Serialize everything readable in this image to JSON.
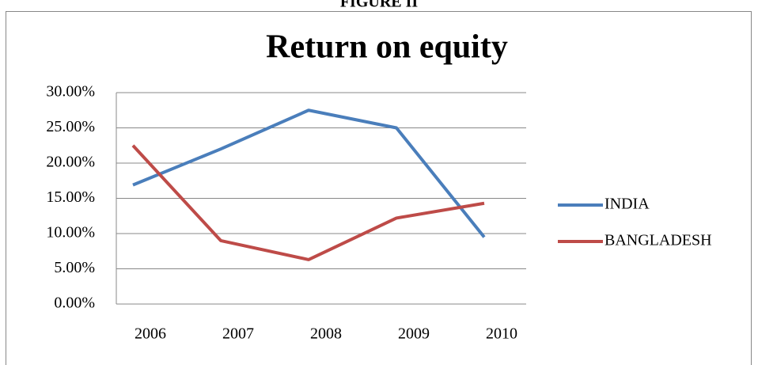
{
  "chart_data": {
    "type": "line",
    "header": "FIGURE II",
    "title": "Return on equity",
    "categories": [
      "2006",
      "2007",
      "2008",
      "2009",
      "2010"
    ],
    "series": [
      {
        "name": "INDIA",
        "color": "#4a7ebb",
        "values": [
          16.9,
          22,
          27.5,
          25,
          9.5
        ]
      },
      {
        "name": "BANGLADESH",
        "color": "#be4b48",
        "values": [
          22.5,
          9,
          6.3,
          12.2,
          14.3
        ]
      }
    ],
    "ylim": [
      0,
      30
    ],
    "yticks": [
      {
        "value": 0,
        "label": "0.00%"
      },
      {
        "value": 5,
        "label": "5.00%"
      },
      {
        "value": 10,
        "label": "10.00%"
      },
      {
        "value": 15,
        "label": "15.00%"
      },
      {
        "value": 20,
        "label": "20.00%"
      },
      {
        "value": 25,
        "label": "25.00%"
      },
      {
        "value": 30,
        "label": "30.00%"
      }
    ],
    "grid": true,
    "legend": "right"
  }
}
